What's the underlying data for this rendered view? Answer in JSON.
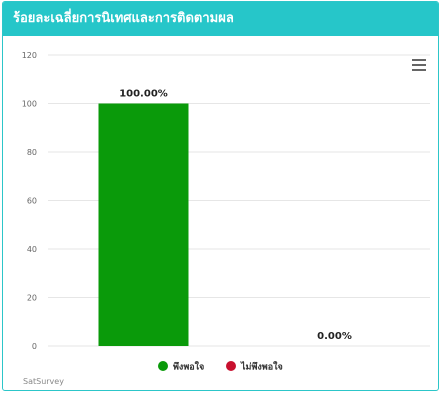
{
  "header": {
    "title": "ร้อยละเฉลี่ยการนิเทศและการติดตามผล"
  },
  "credit": "SatSurvey",
  "colors": {
    "header_bg": "#26c6c9",
    "satisfied": "#0a9a0a",
    "unsatisfied": "#c8102e"
  },
  "chart_data": {
    "type": "bar",
    "title": "",
    "xlabel": "",
    "ylabel": "",
    "ylim": [
      0,
      120
    ],
    "yticks": [
      0,
      20,
      40,
      60,
      80,
      100,
      120
    ],
    "categories": [
      "พึงพอใจ",
      "ไม่พึงพอใจ"
    ],
    "series": [
      {
        "name": "พึงพอใจ",
        "values": [
          100,
          null
        ],
        "color": "#0a9a0a",
        "label": "100.00%"
      },
      {
        "name": "ไม่พึงพอใจ",
        "values": [
          null,
          0
        ],
        "color": "#c8102e",
        "label": "0.00%"
      }
    ],
    "grid": true,
    "legend": "bottom-center"
  }
}
